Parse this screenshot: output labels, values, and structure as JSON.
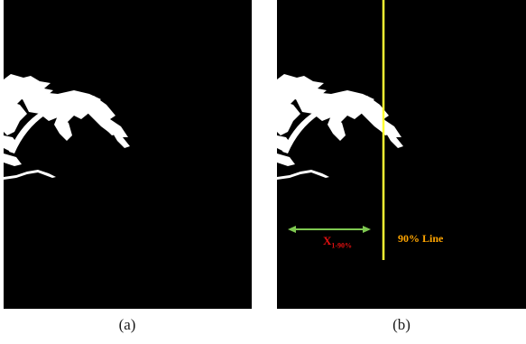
{
  "panels": [
    {
      "id": "a",
      "caption": "(a)"
    },
    {
      "id": "b",
      "caption": "(b)",
      "annotations": {
        "x_symbol": "X",
        "x_subscript": "1-90%",
        "line_label": "90% Line",
        "line_color": "#ffff33",
        "arrow_color": "#7ec850",
        "x_label_color": "#e01010",
        "line_label_color": "#ffa500"
      }
    }
  ]
}
